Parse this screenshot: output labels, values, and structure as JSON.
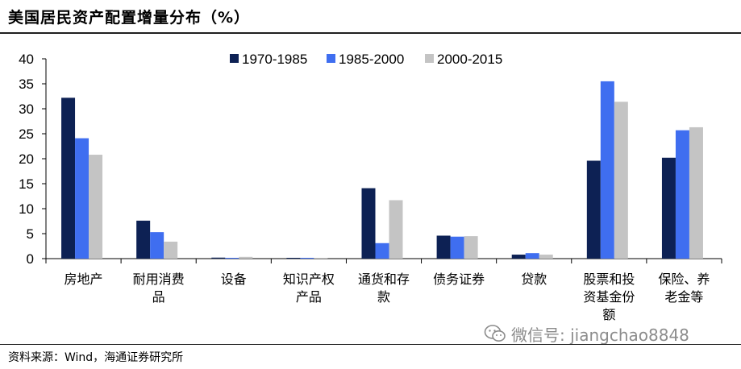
{
  "header": {
    "title": "美国居民资产配置增量分布（%）"
  },
  "footer": {
    "source": "资料来源：Wind，海通证券研究所"
  },
  "watermark": {
    "icon": "wechat-icon",
    "text": "微信号: jiangchao8848"
  },
  "colors": {
    "s1": "#0d2154",
    "s2": "#3f6ef0",
    "s3": "#c4c4c4",
    "axis": "#000000"
  },
  "chart_data": {
    "type": "bar",
    "title": "美国居民资产配置增量分布（%）",
    "xlabel": "",
    "ylabel": "",
    "ylim": [
      0,
      40
    ],
    "yticks": [
      0,
      5,
      10,
      15,
      20,
      25,
      30,
      35,
      40
    ],
    "grid": false,
    "legend_position": "top-center",
    "categories": [
      [
        "房地产"
      ],
      [
        "耐用消费",
        "品"
      ],
      [
        "设备"
      ],
      [
        "知识产权",
        "产品"
      ],
      [
        "通货和存",
        "款"
      ],
      [
        "债务证券"
      ],
      [
        "贷款"
      ],
      [
        "股票和投",
        "资基金份",
        "额"
      ],
      [
        "保险、养",
        "老金等"
      ]
    ],
    "series": [
      {
        "name": "1970-1985",
        "values": [
          32.2,
          7.6,
          0.2,
          0.05,
          14.1,
          4.6,
          0.8,
          19.6,
          20.2
        ]
      },
      {
        "name": "1985-2000",
        "values": [
          24.1,
          5.3,
          0.15,
          0.05,
          3.1,
          4.4,
          1.1,
          35.5,
          25.7
        ]
      },
      {
        "name": "2000-2015",
        "values": [
          20.8,
          3.4,
          0.35,
          0.05,
          11.7,
          4.5,
          0.8,
          31.4,
          26.3
        ]
      }
    ]
  }
}
